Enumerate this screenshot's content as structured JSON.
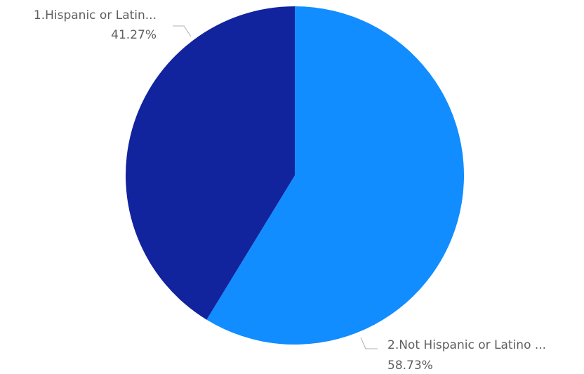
{
  "chart_data": {
    "type": "pie",
    "slices": [
      {
        "label": "2.Not Hispanic or Latino ...",
        "value": 58.73,
        "value_label": "58.73%",
        "color": "#118dff"
      },
      {
        "label": "1.Hispanic or Latin...",
        "value": 41.27,
        "value_label": "41.27%",
        "color": "#12239e"
      }
    ],
    "legend": "none",
    "data_labels": "outside with leader lines"
  }
}
